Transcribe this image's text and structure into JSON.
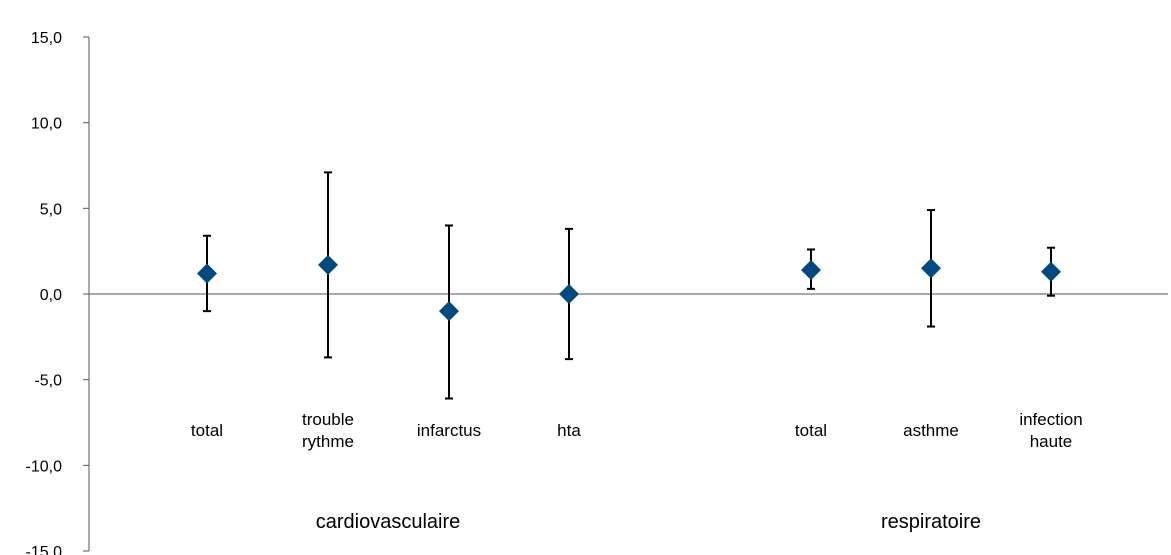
{
  "chart_data": {
    "type": "scatter",
    "title": "",
    "xlabel": "",
    "ylabel": "",
    "ylim": [
      -15,
      15
    ],
    "yticks": [
      "15,0",
      "10,0",
      "5,0",
      "0,0",
      "-5,0",
      "-10,0",
      "-15,0"
    ],
    "grid": false,
    "legend": "none",
    "groups": [
      "cardiovasculaire",
      "respiratoire"
    ],
    "categories": [
      {
        "group": "cardiovasculaire",
        "label_lines": [
          "total"
        ]
      },
      {
        "group": "cardiovasculaire",
        "label_lines": [
          "trouble",
          "rythme"
        ]
      },
      {
        "group": "cardiovasculaire",
        "label_lines": [
          "infarctus"
        ]
      },
      {
        "group": "cardiovasculaire",
        "label_lines": [
          "hta"
        ]
      },
      {
        "group": "respiratoire",
        "label_lines": [
          "total"
        ]
      },
      {
        "group": "respiratoire",
        "label_lines": [
          "asthme"
        ]
      },
      {
        "group": "respiratoire",
        "label_lines": [
          "infection",
          "haute"
        ]
      }
    ],
    "series": [
      {
        "values": [
          1.2,
          1.7,
          -1.0,
          0.0,
          1.4,
          1.5,
          1.3
        ],
        "lower": [
          -1.0,
          -3.7,
          -6.1,
          -3.8,
          0.3,
          -1.9,
          -0.1
        ],
        "upper": [
          3.4,
          7.1,
          4.0,
          3.8,
          2.6,
          4.9,
          2.7
        ]
      }
    ],
    "colors": {
      "marker": "#004a80",
      "errorbar": "#000000",
      "axis": "#555555"
    }
  }
}
